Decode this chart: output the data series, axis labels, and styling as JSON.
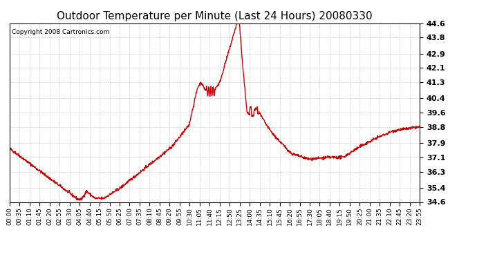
{
  "title": "Outdoor Temperature per Minute (Last 24 Hours) 20080330",
  "copyright_text": "Copyright 2008 Cartronics.com",
  "line_color": "#cc0000",
  "background_color": "#ffffff",
  "plot_bg_color": "#ffffff",
  "grid_color": "#bbbbbb",
  "ylim": [
    34.6,
    44.6
  ],
  "yticks": [
    34.6,
    35.4,
    36.3,
    37.1,
    37.9,
    38.8,
    39.6,
    40.4,
    41.3,
    42.1,
    42.9,
    43.8,
    44.6
  ],
  "x_tick_labels": [
    "00:00",
    "00:35",
    "01:10",
    "01:45",
    "02:20",
    "02:55",
    "03:30",
    "04:05",
    "04:40",
    "05:15",
    "05:50",
    "06:25",
    "07:00",
    "07:35",
    "08:10",
    "08:45",
    "09:20",
    "09:55",
    "10:30",
    "11:05",
    "11:40",
    "12:15",
    "12:50",
    "13:25",
    "14:00",
    "14:35",
    "15:10",
    "15:45",
    "16:20",
    "16:55",
    "17:30",
    "18:05",
    "18:40",
    "19:15",
    "19:50",
    "20:25",
    "21:00",
    "21:35",
    "22:10",
    "22:45",
    "23:20",
    "23:55"
  ],
  "title_fontsize": 11,
  "tick_fontsize": 6.5,
  "ytick_fontsize": 8,
  "copyright_fontsize": 6.5,
  "line_width": 1.0
}
